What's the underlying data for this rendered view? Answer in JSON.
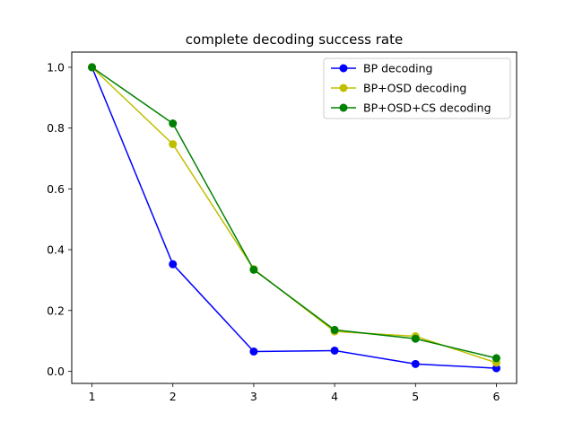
{
  "chart_data": {
    "type": "line",
    "title": "complete decoding success rate",
    "xlabel": "",
    "ylabel": "",
    "x": [
      1,
      2,
      3,
      4,
      5,
      6
    ],
    "xlim": [
      0.75,
      6.25
    ],
    "ylim": [
      -0.04,
      1.05
    ],
    "xticks": [
      1,
      2,
      3,
      4,
      5,
      6
    ],
    "yticks": [
      0.0,
      0.2,
      0.4,
      0.6,
      0.8,
      1.0
    ],
    "yticklabels": [
      "0.0",
      "0.2",
      "0.4",
      "0.6",
      "0.8",
      "1.0"
    ],
    "grid": false,
    "legend_position": "top-right",
    "series": [
      {
        "name": "BP decoding",
        "color": "#0000ff",
        "values": [
          1.0,
          0.352,
          0.065,
          0.068,
          0.024,
          0.01
        ]
      },
      {
        "name": "BP+OSD decoding",
        "color": "#bfbf00",
        "values": [
          1.0,
          0.747,
          0.336,
          0.131,
          0.115,
          0.028
        ]
      },
      {
        "name": "BP+OSD+CS decoding",
        "color": "#008000",
        "values": [
          1.0,
          0.815,
          0.334,
          0.136,
          0.107,
          0.043
        ]
      }
    ]
  }
}
